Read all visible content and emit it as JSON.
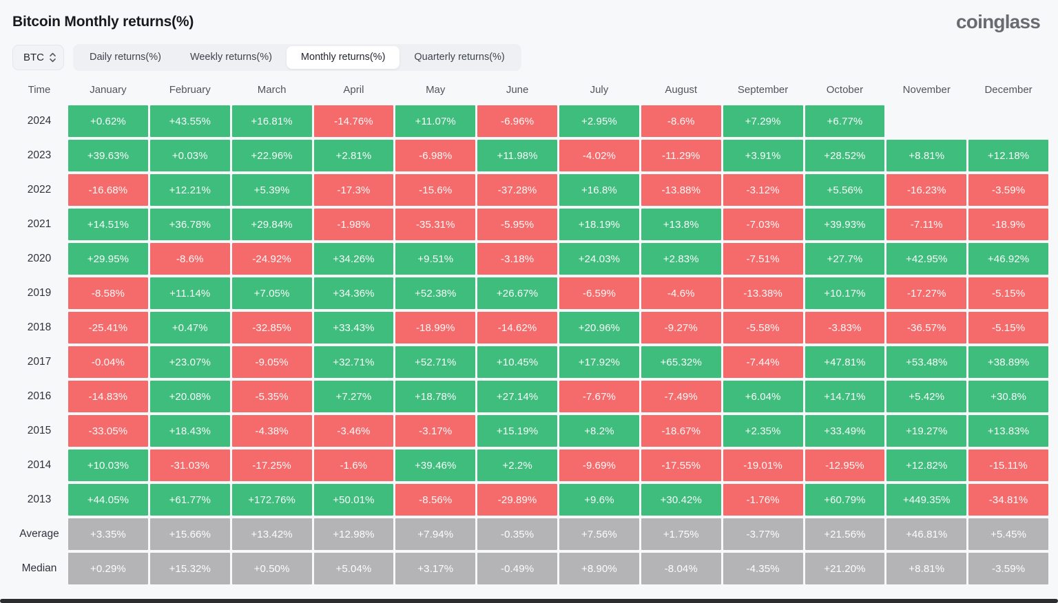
{
  "header": {
    "title": "Bitcoin Monthly returns(%)",
    "logo": "coinglass"
  },
  "controls": {
    "symbol": "BTC",
    "tabs": [
      {
        "name": "daily",
        "label": "Daily returns(%)",
        "active": false
      },
      {
        "name": "weekly",
        "label": "Weekly returns(%)",
        "active": false
      },
      {
        "name": "monthly",
        "label": "Monthly returns(%)",
        "active": true
      },
      {
        "name": "quarterly",
        "label": "Quarterly returns(%)",
        "active": false
      }
    ]
  },
  "colors": {
    "positive": "#3ebd7c",
    "negative": "#f56a6a",
    "summary": "#b4b4b7"
  },
  "table": {
    "time_header": "Time",
    "months": [
      "January",
      "February",
      "March",
      "April",
      "May",
      "June",
      "July",
      "August",
      "September",
      "October",
      "November",
      "December"
    ],
    "rows": [
      {
        "label": "2024",
        "type": "year",
        "values": [
          "+0.62%",
          "+43.55%",
          "+16.81%",
          "-14.76%",
          "+11.07%",
          "-6.96%",
          "+2.95%",
          "-8.6%",
          "+7.29%",
          "+6.77%",
          "",
          ""
        ]
      },
      {
        "label": "2023",
        "type": "year",
        "values": [
          "+39.63%",
          "+0.03%",
          "+22.96%",
          "+2.81%",
          "-6.98%",
          "+11.98%",
          "-4.02%",
          "-11.29%",
          "+3.91%",
          "+28.52%",
          "+8.81%",
          "+12.18%"
        ]
      },
      {
        "label": "2022",
        "type": "year",
        "values": [
          "-16.68%",
          "+12.21%",
          "+5.39%",
          "-17.3%",
          "-15.6%",
          "-37.28%",
          "+16.8%",
          "-13.88%",
          "-3.12%",
          "+5.56%",
          "-16.23%",
          "-3.59%"
        ]
      },
      {
        "label": "2021",
        "type": "year",
        "values": [
          "+14.51%",
          "+36.78%",
          "+29.84%",
          "-1.98%",
          "-35.31%",
          "-5.95%",
          "+18.19%",
          "+13.8%",
          "-7.03%",
          "+39.93%",
          "-7.11%",
          "-18.9%"
        ]
      },
      {
        "label": "2020",
        "type": "year",
        "values": [
          "+29.95%",
          "-8.6%",
          "-24.92%",
          "+34.26%",
          "+9.51%",
          "-3.18%",
          "+24.03%",
          "+2.83%",
          "-7.51%",
          "+27.7%",
          "+42.95%",
          "+46.92%"
        ]
      },
      {
        "label": "2019",
        "type": "year",
        "values": [
          "-8.58%",
          "+11.14%",
          "+7.05%",
          "+34.36%",
          "+52.38%",
          "+26.67%",
          "-6.59%",
          "-4.6%",
          "-13.38%",
          "+10.17%",
          "-17.27%",
          "-5.15%"
        ]
      },
      {
        "label": "2018",
        "type": "year",
        "values": [
          "-25.41%",
          "+0.47%",
          "-32.85%",
          "+33.43%",
          "-18.99%",
          "-14.62%",
          "+20.96%",
          "-9.27%",
          "-5.58%",
          "-3.83%",
          "-36.57%",
          "-5.15%"
        ]
      },
      {
        "label": "2017",
        "type": "year",
        "values": [
          "-0.04%",
          "+23.07%",
          "-9.05%",
          "+32.71%",
          "+52.71%",
          "+10.45%",
          "+17.92%",
          "+65.32%",
          "-7.44%",
          "+47.81%",
          "+53.48%",
          "+38.89%"
        ]
      },
      {
        "label": "2016",
        "type": "year",
        "values": [
          "-14.83%",
          "+20.08%",
          "-5.35%",
          "+7.27%",
          "+18.78%",
          "+27.14%",
          "-7.67%",
          "-7.49%",
          "+6.04%",
          "+14.71%",
          "+5.42%",
          "+30.8%"
        ]
      },
      {
        "label": "2015",
        "type": "year",
        "values": [
          "-33.05%",
          "+18.43%",
          "-4.38%",
          "-3.46%",
          "-3.17%",
          "+15.19%",
          "+8.2%",
          "-18.67%",
          "+2.35%",
          "+33.49%",
          "+19.27%",
          "+13.83%"
        ]
      },
      {
        "label": "2014",
        "type": "year",
        "values": [
          "+10.03%",
          "-31.03%",
          "-17.25%",
          "-1.6%",
          "+39.46%",
          "+2.2%",
          "-9.69%",
          "-17.55%",
          "-19.01%",
          "-12.95%",
          "+12.82%",
          "-15.11%"
        ]
      },
      {
        "label": "2013",
        "type": "year",
        "values": [
          "+44.05%",
          "+61.77%",
          "+172.76%",
          "+50.01%",
          "-8.56%",
          "-29.89%",
          "+9.6%",
          "+30.42%",
          "-1.76%",
          "+60.79%",
          "+449.35%",
          "-34.81%"
        ]
      },
      {
        "label": "Average",
        "type": "summary",
        "values": [
          "+3.35%",
          "+15.66%",
          "+13.42%",
          "+12.98%",
          "+7.94%",
          "-0.35%",
          "+7.56%",
          "+1.75%",
          "-3.77%",
          "+21.56%",
          "+46.81%",
          "+5.45%"
        ]
      },
      {
        "label": "Median",
        "type": "summary",
        "values": [
          "+0.29%",
          "+15.32%",
          "+0.50%",
          "+5.04%",
          "+3.17%",
          "-0.49%",
          "+8.90%",
          "-8.04%",
          "-4.35%",
          "+21.20%",
          "+8.81%",
          "-3.59%"
        ]
      }
    ]
  }
}
